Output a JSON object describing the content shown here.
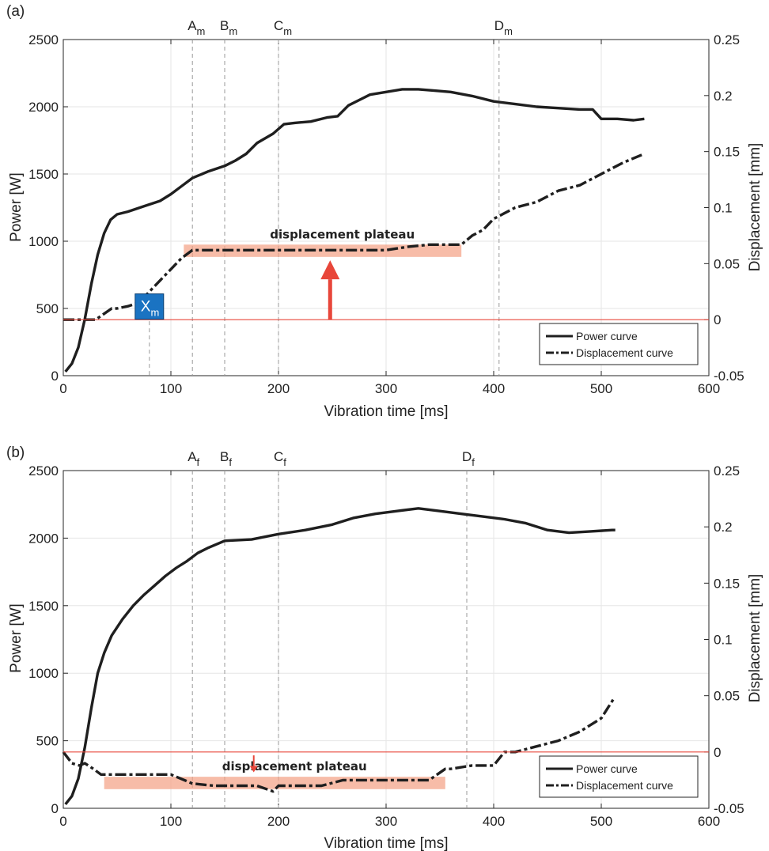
{
  "chart_data": [
    {
      "panel": "(a)",
      "type": "line",
      "xlabel": "Vibration time [ms]",
      "ylabel": "Power [W]",
      "ylabel_right": "Displacement [mm]",
      "xlim": [
        0,
        600
      ],
      "ylim": [
        0,
        2500
      ],
      "ylim_right": [
        -0.05,
        0.25
      ],
      "x_ticks": [
        "0",
        "100",
        "200",
        "300",
        "400",
        "500",
        "600"
      ],
      "y_ticks": [
        "0",
        "500",
        "1000",
        "1500",
        "2000",
        "2500"
      ],
      "y_ticks_right": [
        "-0.05",
        "0",
        "0.05",
        "0.1",
        "0.15",
        "0.2",
        "0.25"
      ],
      "grid": true,
      "legend_position": "bottom-right",
      "series": [
        {
          "name": "Power curve",
          "axis": "left",
          "style": "solid",
          "x": [
            2,
            8,
            14,
            20,
            26,
            32,
            38,
            44,
            50,
            60,
            75,
            90,
            100,
            110,
            120,
            135,
            150,
            160,
            170,
            180,
            195,
            205,
            215,
            230,
            245,
            255,
            265,
            275,
            285,
            300,
            315,
            330,
            345,
            360,
            380,
            400,
            420,
            440,
            460,
            480,
            492,
            500,
            515,
            530,
            540
          ],
          "y": [
            30,
            90,
            210,
            420,
            680,
            900,
            1060,
            1160,
            1200,
            1220,
            1260,
            1300,
            1350,
            1410,
            1470,
            1520,
            1560,
            1600,
            1650,
            1730,
            1800,
            1870,
            1880,
            1890,
            1920,
            1930,
            2010,
            2050,
            2090,
            2110,
            2130,
            2130,
            2120,
            2110,
            2080,
            2040,
            2020,
            2000,
            1990,
            1980,
            1980,
            1910,
            1910,
            1900,
            1910
          ]
        },
        {
          "name": "Displacement curve",
          "axis": "right",
          "style": "dashdot",
          "x": [
            0,
            30,
            45,
            50,
            60,
            70,
            80,
            90,
            100,
            110,
            120,
            140,
            160,
            180,
            200,
            220,
            240,
            260,
            280,
            300,
            320,
            340,
            360,
            370,
            380,
            390,
            400,
            420,
            440,
            460,
            480,
            500,
            520,
            540
          ],
          "y": [
            0.0,
            0.0,
            0.01,
            0.01,
            0.012,
            0.015,
            0.025,
            0.035,
            0.045,
            0.055,
            0.062,
            0.062,
            0.062,
            0.062,
            0.062,
            0.062,
            0.062,
            0.062,
            0.062,
            0.062,
            0.065,
            0.067,
            0.067,
            0.067,
            0.075,
            0.08,
            0.09,
            0.1,
            0.105,
            0.115,
            0.12,
            0.13,
            0.14,
            0.148
          ]
        }
      ],
      "vlines": [
        {
          "base": "A",
          "sub": "m",
          "x": 120
        },
        {
          "base": "B",
          "sub": "m",
          "x": 150
        },
        {
          "base": "C",
          "sub": "m",
          "x": 200
        },
        {
          "base": "D",
          "sub": "m",
          "x": 405
        }
      ],
      "box_marker": {
        "base": "X",
        "sub": "m",
        "x": 80
      },
      "zero_line_right": 0,
      "plateau": {
        "label": "displacement plateau",
        "x_start": 112,
        "x_end": 370,
        "y_low": 0.056,
        "y_high": 0.067
      },
      "arrow": {
        "direction": "up",
        "x": 248,
        "from": 0.0,
        "to": 0.053
      }
    },
    {
      "panel": "(b)",
      "type": "line",
      "xlabel": "Vibration time [ms]",
      "ylabel": "Power [W]",
      "ylabel_right": "Displacement [mm]",
      "xlim": [
        0,
        600
      ],
      "ylim": [
        0,
        2500
      ],
      "ylim_right": [
        -0.05,
        0.25
      ],
      "x_ticks": [
        "0",
        "100",
        "200",
        "300",
        "400",
        "500",
        "600"
      ],
      "y_ticks": [
        "0",
        "500",
        "1000",
        "1500",
        "2000",
        "2500"
      ],
      "y_ticks_right": [
        "-0.05",
        "0",
        "0.05",
        "0.1",
        "0.15",
        "0.2",
        "0.25"
      ],
      "grid": true,
      "legend_position": "bottom-right",
      "series": [
        {
          "name": "Power curve",
          "axis": "left",
          "style": "solid",
          "x": [
            2,
            8,
            14,
            20,
            26,
            32,
            38,
            45,
            55,
            65,
            75,
            85,
            95,
            105,
            115,
            125,
            135,
            150,
            175,
            200,
            225,
            250,
            270,
            290,
            310,
            330,
            350,
            370,
            390,
            410,
            430,
            450,
            470,
            490,
            510,
            513
          ],
          "y": [
            30,
            90,
            220,
            450,
            740,
            1000,
            1150,
            1280,
            1400,
            1500,
            1580,
            1650,
            1720,
            1780,
            1830,
            1890,
            1930,
            1980,
            1990,
            2030,
            2060,
            2100,
            2150,
            2180,
            2200,
            2220,
            2200,
            2180,
            2160,
            2140,
            2110,
            2060,
            2040,
            2050,
            2060,
            2060
          ]
        },
        {
          "name": "Displacement curve",
          "axis": "right",
          "style": "dashdot",
          "x": [
            0,
            8,
            15,
            20,
            28,
            35,
            50,
            80,
            100,
            120,
            140,
            160,
            180,
            195,
            200,
            210,
            225,
            240,
            260,
            280,
            300,
            320,
            340,
            355,
            360,
            380,
            400,
            410,
            420,
            440,
            460,
            480,
            500,
            512
          ],
          "y": [
            0.0,
            -0.01,
            -0.012,
            -0.01,
            -0.015,
            -0.02,
            -0.02,
            -0.02,
            -0.02,
            -0.028,
            -0.03,
            -0.03,
            -0.03,
            -0.035,
            -0.03,
            -0.03,
            -0.03,
            -0.03,
            -0.025,
            -0.025,
            -0.025,
            -0.025,
            -0.025,
            -0.015,
            -0.015,
            -0.012,
            -0.012,
            0.0,
            0.0,
            0.005,
            0.01,
            0.018,
            0.03,
            0.048
          ]
        }
      ],
      "vlines": [
        {
          "base": "A",
          "sub": "f",
          "x": 120
        },
        {
          "base": "B",
          "sub": "f",
          "x": 150
        },
        {
          "base": "C",
          "sub": "f",
          "x": 200
        },
        {
          "base": "D",
          "sub": "f",
          "x": 375
        }
      ],
      "zero_line_right": 0,
      "plateau": {
        "label": "displacement plateau",
        "x_start": 38,
        "x_end": 355,
        "y_low": -0.033,
        "y_high": -0.022
      },
      "arrow": {
        "direction": "down",
        "x": 177,
        "from": -0.003,
        "to": -0.018
      }
    }
  ]
}
